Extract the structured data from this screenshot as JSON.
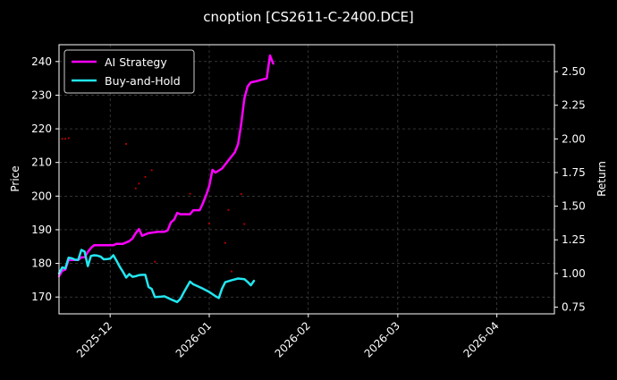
{
  "chart_data": {
    "type": "line",
    "title": "cnoption [CS2611-C-2400.DCE]",
    "ylabel": "Price",
    "y2label": "Return",
    "grid": true,
    "legend_position": "top-left",
    "background": "#000000",
    "xlim": [
      "2025-11-15",
      "2026-04-19"
    ],
    "ylim": [
      165,
      245
    ],
    "y2lim": [
      0.7,
      2.7
    ],
    "x_ticks": [
      "2025-12-01",
      "2026-01-01",
      "2026-02-01",
      "2026-03-01",
      "2026-04-01"
    ],
    "x_tick_labels": [
      "2025-12",
      "2026-01",
      "2026-02",
      "2026-03",
      "2026-04"
    ],
    "y_ticks": [
      170,
      180,
      190,
      200,
      210,
      220,
      230,
      240
    ],
    "y2_ticks": [
      0.75,
      1.0,
      1.25,
      1.5,
      1.75,
      2.0,
      2.25,
      2.5
    ],
    "y2_tick_labels": [
      "0.75",
      "1.00",
      "1.25",
      "1.50",
      "1.75",
      "2.00",
      "2.25",
      "2.50"
    ],
    "series": [
      {
        "name": "AI Strategy",
        "axis": "right",
        "color": "#ff00ff",
        "points": [
          [
            "2025-11-15",
            0.98
          ],
          [
            "2025-11-16",
            1.02
          ],
          [
            "2025-11-17",
            1.03
          ],
          [
            "2025-11-18",
            1.1
          ],
          [
            "2025-11-21",
            1.1
          ],
          [
            "2025-11-22",
            1.12
          ],
          [
            "2025-11-23",
            1.12
          ],
          [
            "2025-11-24",
            1.16
          ],
          [
            "2025-11-25",
            1.19
          ],
          [
            "2025-11-26",
            1.21
          ],
          [
            "2025-11-28",
            1.21
          ],
          [
            "2025-11-29",
            1.21
          ],
          [
            "2025-12-01",
            1.21
          ],
          [
            "2025-12-02",
            1.21
          ],
          [
            "2025-12-03",
            1.22
          ],
          [
            "2025-12-04",
            1.22
          ],
          [
            "2025-12-05",
            1.22
          ],
          [
            "2025-12-07",
            1.24
          ],
          [
            "2025-12-08",
            1.26
          ],
          [
            "2025-12-09",
            1.3
          ],
          [
            "2025-12-10",
            1.33
          ],
          [
            "2025-12-11",
            1.28
          ],
          [
            "2025-12-12",
            1.29
          ],
          [
            "2025-12-13",
            1.3
          ],
          [
            "2025-12-16",
            1.31
          ],
          [
            "2025-12-18",
            1.31
          ],
          [
            "2025-12-19",
            1.32
          ],
          [
            "2025-12-20",
            1.38
          ],
          [
            "2025-12-21",
            1.4
          ],
          [
            "2025-12-22",
            1.45
          ],
          [
            "2025-12-23",
            1.44
          ],
          [
            "2025-12-26",
            1.44
          ],
          [
            "2025-12-27",
            1.47
          ],
          [
            "2025-12-29",
            1.47
          ],
          [
            "2025-12-30",
            1.52
          ],
          [
            "2025-12-31",
            1.58
          ],
          [
            "2026-01-01",
            1.65
          ],
          [
            "2026-01-02",
            1.77
          ],
          [
            "2026-01-03",
            1.75
          ],
          [
            "2026-01-05",
            1.78
          ],
          [
            "2026-01-06",
            1.81
          ],
          [
            "2026-01-07",
            1.84
          ],
          [
            "2026-01-08",
            1.87
          ],
          [
            "2026-01-09",
            1.9
          ],
          [
            "2026-01-10",
            1.96
          ],
          [
            "2026-01-11",
            2.11
          ],
          [
            "2026-01-12",
            2.3
          ],
          [
            "2026-01-13",
            2.39
          ],
          [
            "2026-01-14",
            2.42
          ],
          [
            "2026-01-16",
            2.43
          ],
          [
            "2026-01-19",
            2.45
          ],
          [
            "2026-01-20",
            2.62
          ],
          [
            "2026-01-21",
            2.56
          ]
        ]
      },
      {
        "name": "Buy-and-Hold",
        "axis": "left",
        "color": "#22e6f0",
        "points": [
          [
            "2025-11-15",
            177
          ],
          [
            "2025-11-16",
            178.8
          ],
          [
            "2025-11-17",
            178.5
          ],
          [
            "2025-11-18",
            181.7
          ],
          [
            "2025-11-19",
            181.5
          ],
          [
            "2025-11-20",
            181.1
          ],
          [
            "2025-11-21",
            181.0
          ],
          [
            "2025-11-22",
            184.0
          ],
          [
            "2025-11-23",
            183.5
          ],
          [
            "2025-11-24",
            179.2
          ],
          [
            "2025-11-25",
            182.2
          ],
          [
            "2025-11-26",
            182.4
          ],
          [
            "2025-11-27",
            182.3
          ],
          [
            "2025-11-28",
            182.0
          ],
          [
            "2025-11-29",
            181.2
          ],
          [
            "2025-11-30",
            181.3
          ],
          [
            "2025-12-01",
            181.4
          ],
          [
            "2025-12-02",
            182.4
          ],
          [
            "2025-12-03",
            180.8
          ],
          [
            "2025-12-04",
            179.0
          ],
          [
            "2025-12-05",
            177.5
          ],
          [
            "2025-12-06",
            175.8
          ],
          [
            "2025-12-07",
            176.8
          ],
          [
            "2025-12-08",
            176.0
          ],
          [
            "2025-12-09",
            176.2
          ],
          [
            "2025-12-10",
            176.5
          ],
          [
            "2025-12-11",
            176.6
          ],
          [
            "2025-12-12",
            176.6
          ],
          [
            "2025-12-13",
            173.0
          ],
          [
            "2025-12-14",
            172.4
          ],
          [
            "2025-12-15",
            170.0
          ],
          [
            "2025-12-17",
            170.1
          ],
          [
            "2025-12-18",
            170.2
          ],
          [
            "2025-12-20",
            169.3
          ],
          [
            "2025-12-21",
            168.9
          ],
          [
            "2025-12-22",
            168.5
          ],
          [
            "2025-12-23",
            169.5
          ],
          [
            "2025-12-24",
            171.3
          ],
          [
            "2025-12-26",
            174.6
          ],
          [
            "2025-12-27",
            173.8
          ],
          [
            "2025-12-30",
            172.5
          ],
          [
            "2026-01-01",
            171.5
          ],
          [
            "2026-01-03",
            170.2
          ],
          [
            "2026-01-04",
            169.7
          ],
          [
            "2026-01-05",
            172.5
          ],
          [
            "2026-01-06",
            174.4
          ],
          [
            "2026-01-08",
            175.0
          ],
          [
            "2026-01-10",
            175.5
          ],
          [
            "2026-01-12",
            175.3
          ],
          [
            "2026-01-13",
            174.5
          ],
          [
            "2026-01-14",
            173.5
          ],
          [
            "2026-01-15",
            174.8
          ]
        ]
      }
    ],
    "red_marks": [
      [
        "2025-11-16",
        217
      ],
      [
        "2025-11-17",
        217
      ],
      [
        "2025-11-18",
        217.2
      ],
      [
        "2025-12-06",
        215.5
      ],
      [
        "2025-12-09",
        202.3
      ],
      [
        "2025-12-10",
        203.7
      ],
      [
        "2025-12-12",
        205.7
      ],
      [
        "2025-12-14",
        207.7
      ],
      [
        "2025-12-15",
        180.5
      ],
      [
        "2025-12-26",
        200.7
      ],
      [
        "2026-01-01",
        191.8
      ],
      [
        "2026-01-06",
        186.1
      ],
      [
        "2026-01-07",
        195.9
      ],
      [
        "2026-01-08",
        177.6
      ],
      [
        "2026-01-11",
        200.6
      ],
      [
        "2026-01-12",
        191.7
      ]
    ]
  }
}
